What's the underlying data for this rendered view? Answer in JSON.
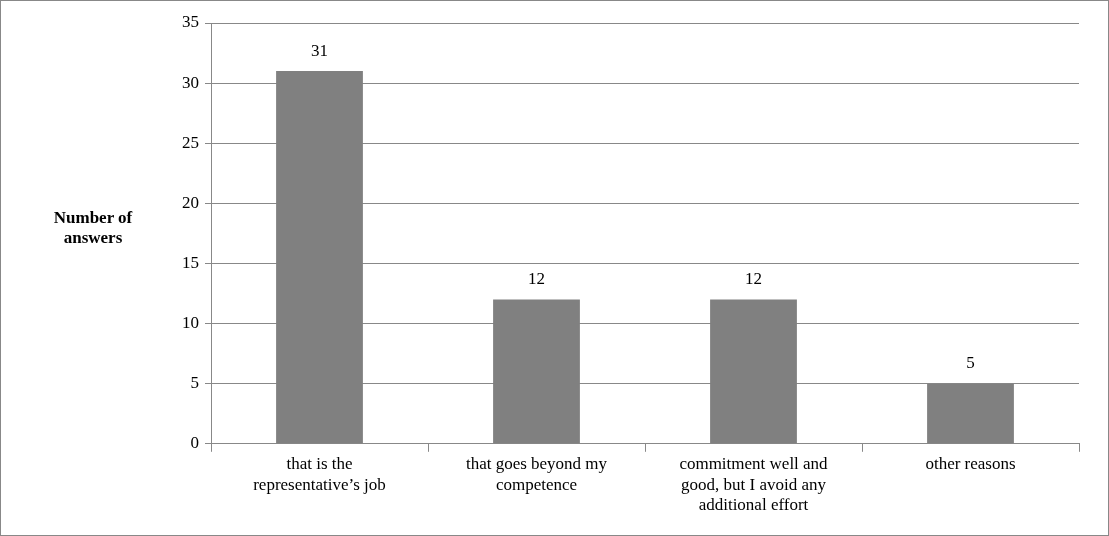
{
  "chart_data": {
    "type": "bar",
    "ylabel": "Number of answers",
    "categories": [
      "that is the representative’s job",
      "that goes beyond my competence",
      "commitment well and good, but I avoid any additional effort",
      "other reasons"
    ],
    "values": [
      31,
      12,
      12,
      5
    ],
    "color": "#808080",
    "ylim": [
      0,
      35
    ],
    "yticks": [
      0,
      5,
      10,
      15,
      20,
      25,
      30,
      35
    ],
    "grid": "y",
    "data_labels": true
  }
}
